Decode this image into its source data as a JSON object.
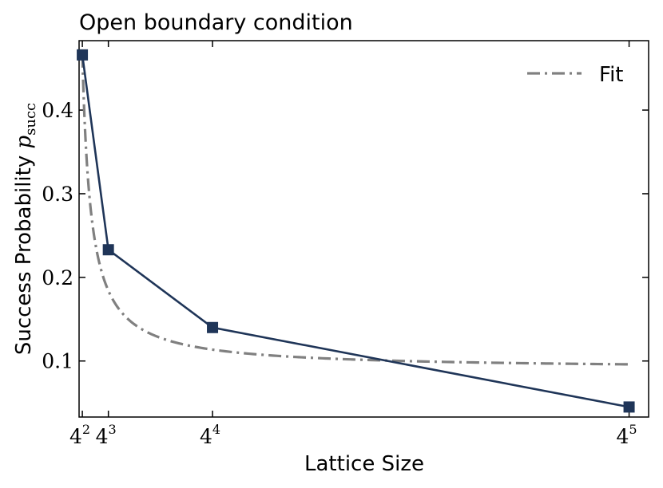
{
  "chart_data": {
    "type": "line",
    "title": "Open boundary condition",
    "xlabel": "Lattice Size",
    "ylabel": {
      "text": "Success Probability ",
      "math": "p",
      "subscript": "succ"
    },
    "x_scale": "linear",
    "xlim": [
      10,
      1060
    ],
    "ylim": [
      0.033,
      0.483
    ],
    "x_ticks": [
      {
        "value": 16,
        "base": "4",
        "exp": "2"
      },
      {
        "value": 64,
        "base": "4",
        "exp": "3"
      },
      {
        "value": 256,
        "base": "4",
        "exp": "4"
      },
      {
        "value": 1024,
        "base": "4",
        "exp": "5"
      }
    ],
    "y_ticks": [
      {
        "value": 0.1,
        "label": "0.1"
      },
      {
        "value": 0.2,
        "label": "0.2"
      },
      {
        "value": 0.3,
        "label": "0.3"
      },
      {
        "value": 0.4,
        "label": "0.4"
      }
    ],
    "grid": false,
    "legend": {
      "position": "top-right",
      "entries": [
        "Fit"
      ]
    },
    "series": [
      {
        "style": "solid",
        "marker": "square",
        "color": "#1f3558",
        "x": [
          16,
          64,
          256,
          1024
        ],
        "y": [
          0.466,
          0.233,
          0.14,
          0.045
        ]
      },
      {
        "name": "Fit",
        "style": "dash-dot",
        "color": "#808080",
        "fit_shape": "a + b / x",
        "x": [
          16,
          64,
          256,
          1024
        ],
        "y": [
          0.466,
          0.21,
          0.131,
          0.096
        ]
      }
    ]
  }
}
